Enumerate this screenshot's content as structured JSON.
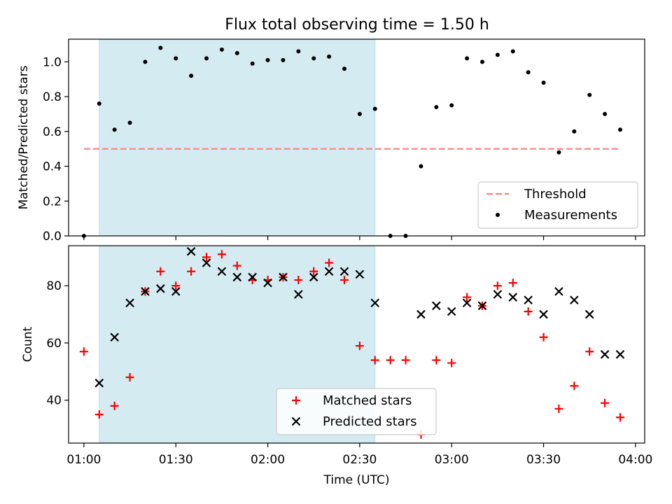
{
  "chart_data": [
    {
      "type": "scatter",
      "title": "Flux total observing time = 1.50 h",
      "xlabel": "",
      "ylabel": "Matched/Predicted stars",
      "x_ticks": [
        "01:00",
        "01:30",
        "02:00",
        "02:30",
        "03:00",
        "03:30",
        "04:00"
      ],
      "x_tick_labels_shown": false,
      "xlim": [
        "00:55",
        "04:03"
      ],
      "ylim": [
        0,
        1.13
      ],
      "y_ticks": [
        "0.0",
        "0.2",
        "0.4",
        "0.6",
        "0.8",
        "1.0"
      ],
      "grid": false,
      "highlight_span": {
        "start": "01:05",
        "end": "02:35",
        "color": "#add8e6"
      },
      "legend_position": "lower-right",
      "series": [
        {
          "name": "Threshold",
          "style": "dashed-line",
          "color": "#ff7f7f",
          "x": [
            "01:00",
            "03:55"
          ],
          "y": [
            0.5,
            0.5
          ]
        },
        {
          "name": "Measurements",
          "style": "dot",
          "color": "#000000",
          "x": [
            "01:00",
            "01:05",
            "01:10",
            "01:15",
            "01:20",
            "01:25",
            "01:30",
            "01:35",
            "01:40",
            "01:45",
            "01:50",
            "01:55",
            "02:00",
            "02:05",
            "02:10",
            "02:15",
            "02:20",
            "02:25",
            "02:30",
            "02:35",
            "02:40",
            "02:45",
            "02:50",
            "02:55",
            "03:00",
            "03:05",
            "03:10",
            "03:15",
            "03:20",
            "03:25",
            "03:30",
            "03:35",
            "03:40",
            "03:45",
            "03:50",
            "03:55"
          ],
          "y": [
            0.0,
            0.76,
            0.61,
            0.65,
            1.0,
            1.08,
            1.02,
            0.92,
            1.02,
            1.07,
            1.05,
            0.99,
            1.01,
            1.01,
            1.06,
            1.02,
            1.03,
            0.96,
            0.7,
            0.73,
            0.0,
            0.0,
            0.4,
            0.74,
            0.75,
            1.02,
            1.0,
            1.04,
            1.06,
            0.94,
            0.88,
            0.48,
            0.6,
            0.81,
            0.7,
            0.61
          ]
        }
      ]
    },
    {
      "type": "scatter",
      "title": "",
      "xlabel": "Time (UTC)",
      "ylabel": "Count",
      "x_ticks": [
        "01:00",
        "01:30",
        "02:00",
        "02:30",
        "03:00",
        "03:30",
        "04:00"
      ],
      "xlim": [
        "00:55",
        "04:03"
      ],
      "ylim": [
        25,
        94
      ],
      "y_ticks": [
        "40",
        "60",
        "80"
      ],
      "grid": false,
      "highlight_span": {
        "start": "01:05",
        "end": "02:35",
        "color": "#add8e6"
      },
      "legend_position": "lower-center",
      "series": [
        {
          "name": "Matched stars",
          "style": "plus",
          "color": "#ff0000",
          "x": [
            "01:00",
            "01:05",
            "01:10",
            "01:15",
            "01:20",
            "01:25",
            "01:30",
            "01:35",
            "01:40",
            "01:45",
            "01:50",
            "01:55",
            "02:00",
            "02:05",
            "02:10",
            "02:15",
            "02:20",
            "02:25",
            "02:30",
            "02:35",
            "02:40",
            "02:45",
            "02:50",
            "02:55",
            "03:00",
            "03:05",
            "03:10",
            "03:15",
            "03:20",
            "03:25",
            "03:30",
            "03:35",
            "03:40",
            "03:45",
            "03:50",
            "03:55"
          ],
          "y": [
            57,
            35,
            38,
            48,
            78,
            85,
            80,
            85,
            90,
            91,
            87,
            82,
            82,
            83,
            82,
            85,
            88,
            82,
            59,
            54,
            54,
            54,
            28,
            54,
            53,
            76,
            73,
            80,
            81,
            71,
            62,
            37,
            45,
            57,
            39,
            34
          ]
        },
        {
          "name": "Predicted stars",
          "style": "x",
          "color": "#000000",
          "x": [
            "01:05",
            "01:10",
            "01:15",
            "01:20",
            "01:25",
            "01:30",
            "01:35",
            "01:40",
            "01:45",
            "01:50",
            "01:55",
            "02:00",
            "02:05",
            "02:10",
            "02:15",
            "02:20",
            "02:25",
            "02:30",
            "02:35",
            "02:55",
            "02:50",
            "03:00",
            "03:05",
            "03:10",
            "03:15",
            "03:20",
            "03:25",
            "03:30",
            "03:35",
            "03:40",
            "03:45",
            "03:50",
            "03:55"
          ],
          "y": [
            46,
            62,
            74,
            78,
            79,
            78,
            92,
            88,
            85,
            83,
            83,
            81,
            83,
            77,
            83,
            85,
            85,
            84,
            74,
            73,
            70,
            71,
            74,
            73,
            77,
            76,
            75,
            70,
            78,
            75,
            70,
            56,
            56
          ]
        }
      ]
    }
  ]
}
